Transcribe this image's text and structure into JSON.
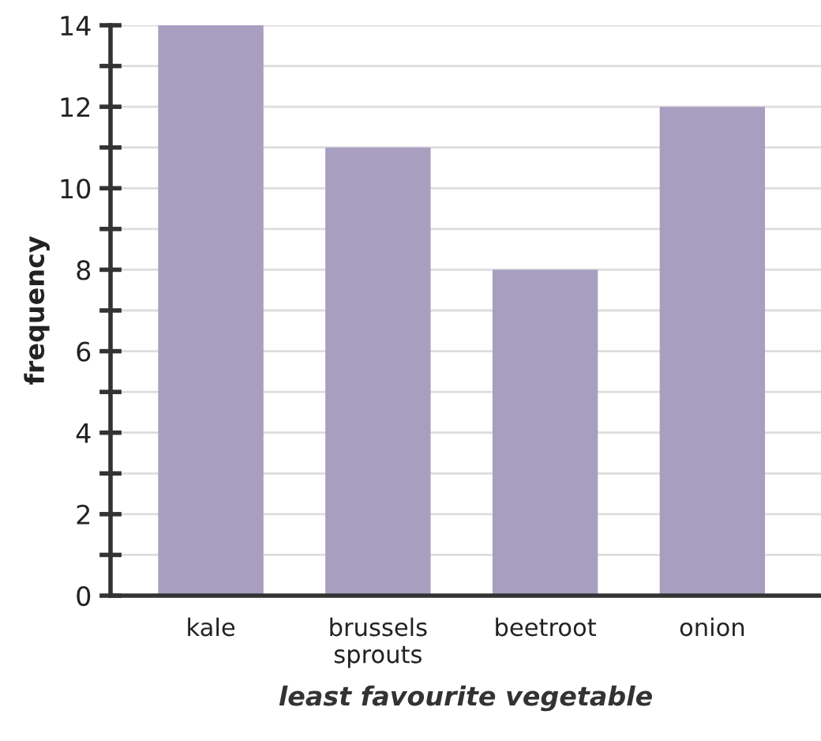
{
  "chart_data": {
    "type": "bar",
    "xlabel": "least favourite vegetable",
    "ylabel": "frequency",
    "categories": [
      "kale",
      "brussels\nsprouts",
      "beetroot",
      "onion"
    ],
    "values": [
      14,
      11,
      8,
      12
    ],
    "color": "#a89ec0",
    "ylim": [
      0,
      14
    ],
    "yticks": [
      0,
      {
        "value": 1,
        "label": null
      },
      2,
      {
        "value": 3,
        "label": null
      },
      4,
      {
        "value": 5,
        "label": null
      },
      6,
      {
        "value": 7,
        "label": null
      },
      8,
      {
        "value": 9,
        "label": null
      },
      10,
      {
        "value": 11,
        "label": null
      },
      12,
      {
        "value": 13,
        "label": null
      },
      14
    ],
    "grid": "y"
  }
}
